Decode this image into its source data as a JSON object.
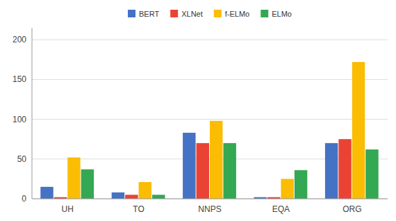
{
  "chart_data": {
    "type": "bar",
    "categories": [
      "UH",
      "TO",
      "NNPS",
      "EQA",
      "ORG"
    ],
    "series": [
      {
        "name": "BERT",
        "color": "#4472C4",
        "values": [
          15,
          8,
          83,
          2,
          70
        ]
      },
      {
        "name": "XLNet",
        "color": "#EA4335",
        "values": [
          2,
          5,
          70,
          2,
          75
        ]
      },
      {
        "name": "f-ELMo",
        "color": "#FBBC04",
        "values": [
          52,
          21,
          98,
          25,
          172
        ]
      },
      {
        "name": "ELMo",
        "color": "#34A853",
        "values": [
          37,
          5,
          70,
          36,
          62
        ]
      }
    ],
    "ylim": [
      0,
      215
    ],
    "yticks": [
      0,
      50,
      100,
      150,
      200
    ],
    "grid": true,
    "legend": "top"
  }
}
